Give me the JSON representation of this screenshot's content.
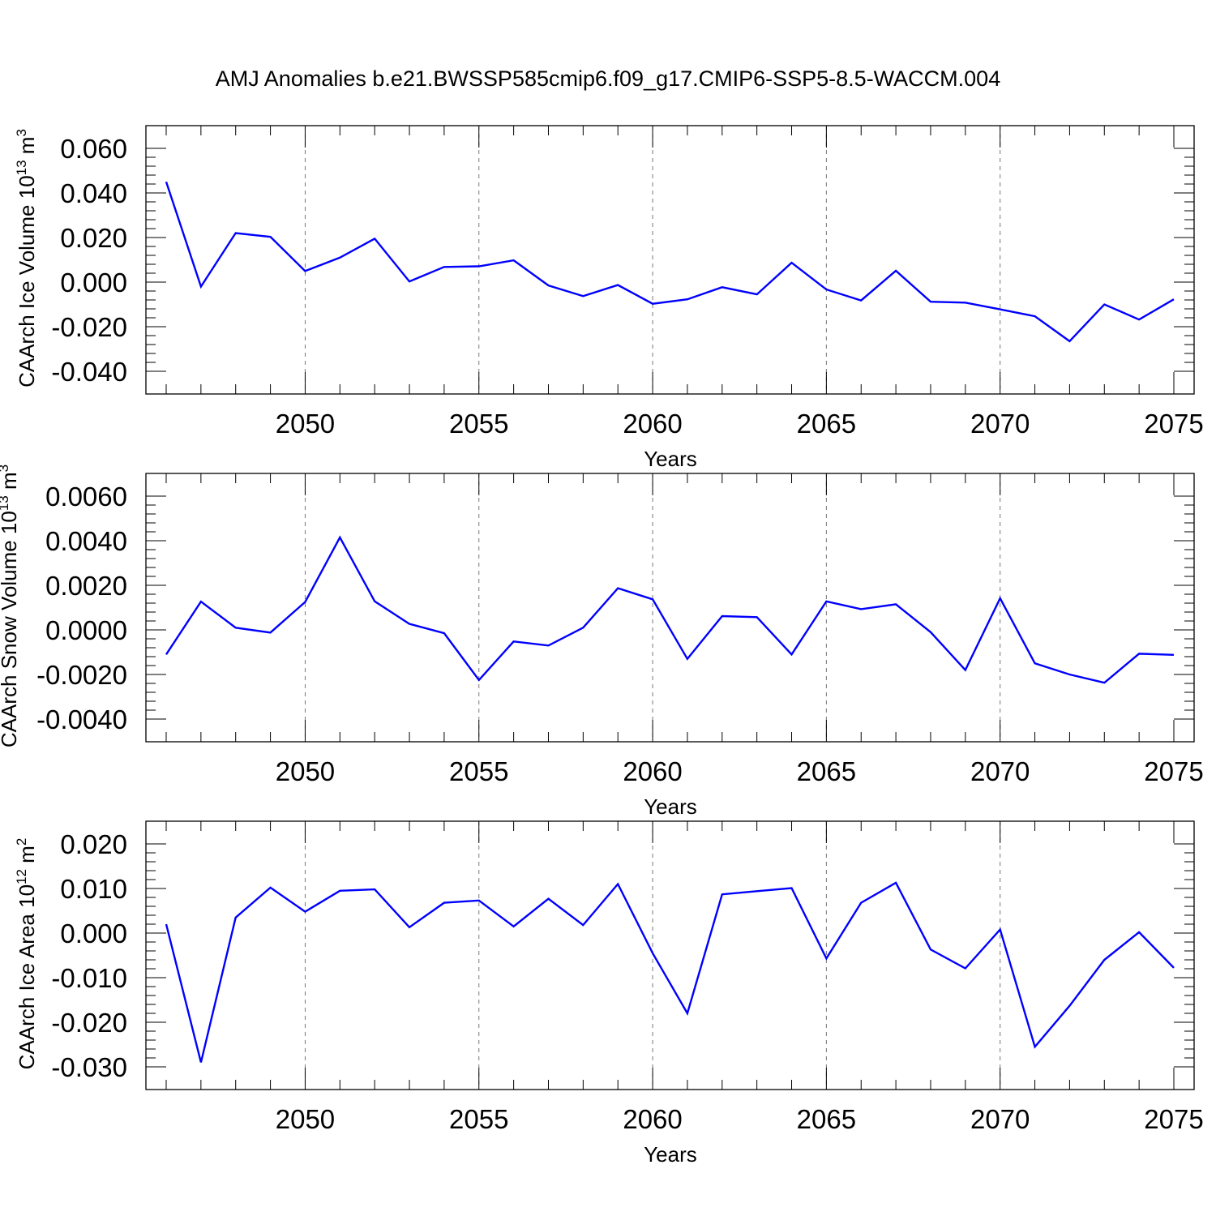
{
  "title": "AMJ Anomalies b.e21.BWSSP585cmip6.f09_g17.CMIP6-SSP5-8.5-WACCM.004",
  "line_color": "#0000ff",
  "chart_data": [
    {
      "type": "line",
      "ylabel_main": "CAArch Ice Volume 10",
      "ylabel_unit": " m",
      "ylabel_exp": "13",
      "ylabel_unit_exp": "3",
      "xlabel": "Years",
      "xlim": [
        2046,
        2075
      ],
      "ylim": [
        -0.04,
        0.06
      ],
      "xticks": [
        2050,
        2055,
        2060,
        2065,
        2070,
        2075
      ],
      "yticks": [
        -0.04,
        -0.02,
        0.0,
        0.02,
        0.04,
        0.06
      ],
      "ytick_labels": [
        "-0.040",
        "-0.020",
        "0.000",
        "0.020",
        "0.040",
        "0.060"
      ],
      "x": [
        2046,
        2047,
        2048,
        2049,
        2050,
        2051,
        2052,
        2053,
        2054,
        2055,
        2056,
        2057,
        2058,
        2059,
        2060,
        2061,
        2062,
        2063,
        2064,
        2065,
        2066,
        2067,
        2068,
        2069,
        2070,
        2071,
        2072,
        2073,
        2074,
        2075
      ],
      "y": [
        0.045,
        -0.002,
        0.022,
        0.0203,
        0.005,
        0.011,
        0.0195,
        0.0003,
        0.0068,
        0.0071,
        0.0098,
        -0.0015,
        -0.0063,
        -0.0013,
        -0.0097,
        -0.0077,
        -0.0023,
        -0.0055,
        0.0087,
        -0.0033,
        -0.0082,
        0.0051,
        -0.0088,
        -0.0092,
        -0.0122,
        -0.0153,
        -0.0265,
        -0.01,
        -0.0168,
        -0.0077
      ]
    },
    {
      "type": "line",
      "ylabel_main": "CAArch Snow Volume 10",
      "ylabel_unit": " m",
      "ylabel_exp": "13",
      "ylabel_unit_exp": "3",
      "xlabel": "Years",
      "xlim": [
        2046,
        2075
      ],
      "ylim": [
        -0.004,
        0.006
      ],
      "xticks": [
        2050,
        2055,
        2060,
        2065,
        2070,
        2075
      ],
      "yticks": [
        -0.004,
        -0.002,
        0.0,
        0.002,
        0.004,
        0.006
      ],
      "ytick_labels": [
        "-0.0040",
        "-0.0020",
        "0.0000",
        "0.0020",
        "0.0040",
        "0.0060"
      ],
      "x": [
        2046,
        2047,
        2048,
        2049,
        2050,
        2051,
        2052,
        2053,
        2054,
        2055,
        2056,
        2057,
        2058,
        2059,
        2060,
        2061,
        2062,
        2063,
        2064,
        2065,
        2066,
        2067,
        2068,
        2069,
        2070,
        2071,
        2072,
        2073,
        2074,
        2075
      ],
      "y": [
        -0.0011,
        0.00127,
        0.0001,
        -0.00012,
        0.00125,
        0.00415,
        0.00128,
        0.00027,
        -0.00015,
        -0.00225,
        -0.00052,
        -0.0007,
        0.0001,
        0.00187,
        0.00137,
        -0.0013,
        0.00062,
        0.00057,
        -0.0011,
        0.00128,
        0.00093,
        0.00115,
        -0.0001,
        -0.0018,
        0.00142,
        -0.0015,
        -0.002,
        -0.00237,
        -0.00107,
        -0.00112
      ]
    },
    {
      "type": "line",
      "ylabel_main": "CAArch Ice Area 10",
      "ylabel_unit": " m",
      "ylabel_exp": "12",
      "ylabel_unit_exp": "2",
      "xlabel": "Years",
      "xlim": [
        2046,
        2075
      ],
      "ylim": [
        -0.03,
        0.02
      ],
      "xticks": [
        2050,
        2055,
        2060,
        2065,
        2070,
        2075
      ],
      "yticks": [
        -0.03,
        -0.02,
        -0.01,
        0.0,
        0.01,
        0.02
      ],
      "ytick_labels": [
        "-0.030",
        "-0.020",
        "-0.010",
        "0.000",
        "0.010",
        "0.020"
      ],
      "x": [
        2046,
        2047,
        2048,
        2049,
        2050,
        2051,
        2052,
        2053,
        2054,
        2055,
        2056,
        2057,
        2058,
        2059,
        2060,
        2061,
        2062,
        2063,
        2064,
        2065,
        2066,
        2067,
        2068,
        2069,
        2070,
        2071,
        2072,
        2073,
        2074,
        2075
      ],
      "y": [
        0.002,
        -0.029,
        0.0035,
        0.0102,
        0.0048,
        0.0095,
        0.0098,
        0.0013,
        0.0068,
        0.0073,
        0.0015,
        0.0077,
        0.0018,
        0.011,
        -0.0045,
        -0.018,
        0.0087,
        0.0094,
        0.0101,
        -0.0057,
        0.0068,
        0.0113,
        -0.0037,
        -0.0079,
        0.0008,
        -0.0255,
        -0.0163,
        -0.006,
        0.0002,
        -0.0078
      ]
    }
  ]
}
